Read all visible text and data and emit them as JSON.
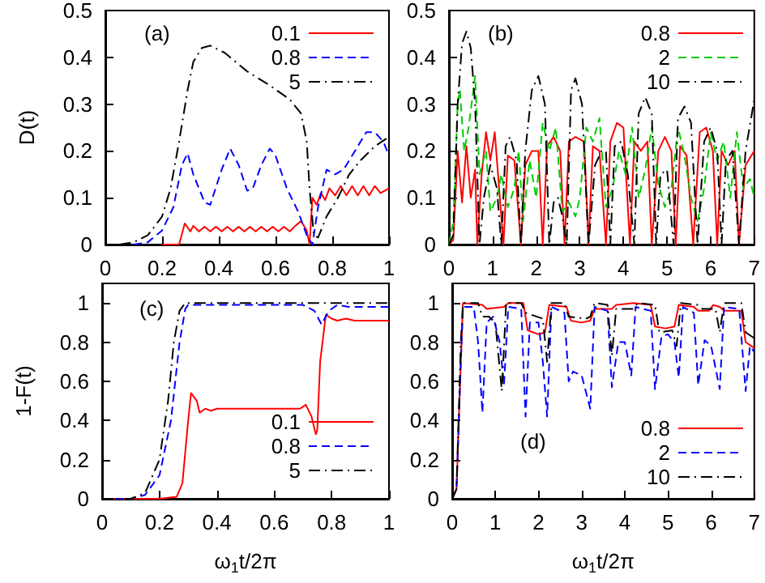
{
  "chart_data": [
    {
      "type": "line",
      "ylabel": "D(t)",
      "annotations": [
        "(a)"
      ],
      "xlim": [
        0,
        1
      ],
      "xticks": [
        0,
        0.2,
        0.4,
        0.6,
        0.8,
        1
      ],
      "ylim": [
        0,
        0.5
      ],
      "yticks": [
        0,
        0.1,
        0.2,
        0.3,
        0.4,
        0.5
      ],
      "legend": "top right",
      "grid": false,
      "series": [
        {
          "name": "0.1",
          "color": "#ff0000",
          "line_style": "solid",
          "x": [
            0.2,
            0.26,
            0.28,
            0.3,
            0.31,
            0.33,
            0.35,
            0.37,
            0.39,
            0.41,
            0.43,
            0.45,
            0.47,
            0.49,
            0.51,
            0.53,
            0.55,
            0.57,
            0.59,
            0.61,
            0.63,
            0.65,
            0.67,
            0.69,
            0.71,
            0.72,
            0.73,
            0.745,
            0.76,
            0.775,
            0.79,
            0.81,
            0.83,
            0.85,
            0.87,
            0.89,
            0.91,
            0.93,
            0.95,
            0.97,
            1.0
          ],
          "values": [
            0,
            0,
            0.045,
            0.028,
            0.04,
            0.028,
            0.038,
            0.028,
            0.038,
            0.028,
            0.038,
            0.028,
            0.038,
            0.028,
            0.038,
            0.028,
            0.038,
            0.028,
            0.038,
            0.028,
            0.038,
            0.028,
            0.04,
            0.05,
            0.03,
            0,
            0.1,
            0.085,
            0.11,
            0.095,
            0.12,
            0.105,
            0.125,
            0.105,
            0.125,
            0.105,
            0.125,
            0.105,
            0.125,
            0.11,
            0.12
          ]
        },
        {
          "name": "0.8",
          "color": "#0000ff",
          "line_style": "dashed",
          "x": [
            0.1,
            0.15,
            0.2,
            0.24,
            0.27,
            0.29,
            0.31,
            0.35,
            0.37,
            0.41,
            0.44,
            0.47,
            0.5,
            0.52,
            0.55,
            0.58,
            0.6,
            0.64,
            0.68,
            0.71,
            0.73,
            0.75,
            0.78,
            0.81,
            0.84,
            0.88,
            0.92,
            0.95,
            0.98,
            1.0
          ],
          "values": [
            0,
            0.005,
            0.03,
            0.08,
            0.17,
            0.195,
            0.15,
            0.09,
            0.085,
            0.16,
            0.205,
            0.17,
            0.115,
            0.12,
            0.17,
            0.205,
            0.19,
            0.12,
            0.07,
            0.02,
            0,
            0.08,
            0.16,
            0.15,
            0.16,
            0.2,
            0.24,
            0.24,
            0.22,
            0.19
          ]
        },
        {
          "name": "5",
          "color": "#000000",
          "line_style": "dashdot",
          "x": [
            0.05,
            0.1,
            0.15,
            0.2,
            0.23,
            0.26,
            0.29,
            0.31,
            0.34,
            0.37,
            0.42,
            0.5,
            0.58,
            0.65,
            0.69,
            0.71,
            0.72,
            0.735,
            0.75,
            0.78,
            0.82,
            0.86,
            0.9,
            0.95,
            1.0
          ],
          "values": [
            0,
            0.005,
            0.02,
            0.06,
            0.12,
            0.22,
            0.33,
            0.39,
            0.42,
            0.425,
            0.41,
            0.37,
            0.34,
            0.31,
            0.28,
            0.22,
            0.12,
            0.02,
            0.015,
            0.06,
            0.1,
            0.15,
            0.18,
            0.21,
            0.23
          ]
        }
      ]
    },
    {
      "type": "line",
      "annotations": [
        "(b)"
      ],
      "xlim": [
        0,
        7
      ],
      "xticks": [
        0,
        1,
        2,
        3,
        4,
        5,
        6,
        7
      ],
      "ylim": [
        0,
        0.5
      ],
      "yticks": [
        0,
        0.1,
        0.2,
        0.3,
        0.4,
        0.5
      ],
      "legend": "top right",
      "grid": false,
      "series": [
        {
          "name": "0.8",
          "color": "#ff0000",
          "line_style": "solid",
          "x": [
            0,
            0.1,
            0.2,
            0.3,
            0.4,
            0.5,
            0.6,
            0.65,
            0.75,
            0.85,
            0.95,
            1.05,
            1.15,
            1.25,
            1.35,
            1.5,
            1.65,
            1.75,
            1.9,
            2.05,
            2.15,
            2.25,
            2.4,
            2.55,
            2.65,
            2.75,
            2.9,
            3.1,
            3.2,
            3.3,
            3.45,
            3.6,
            3.7,
            3.85,
            4.0,
            4.15,
            4.25,
            4.4,
            4.55,
            4.65,
            4.8,
            4.95,
            5.1,
            5.2,
            5.3,
            5.45,
            5.6,
            5.75,
            5.9,
            6.05,
            6.15,
            6.25,
            6.4,
            6.55,
            6.65,
            6.8,
            7.0
          ],
          "values": [
            0,
            0.01,
            0.2,
            0.09,
            0.21,
            0.1,
            0.16,
            0,
            0.15,
            0.24,
            0.18,
            0.24,
            0.12,
            0,
            0.19,
            0.18,
            0,
            0.17,
            0.2,
            0.2,
            0,
            0.21,
            0.23,
            0.2,
            0,
            0.22,
            0.23,
            0.22,
            0,
            0.21,
            0.2,
            0,
            0.22,
            0.26,
            0.25,
            0,
            0.22,
            0.2,
            0.22,
            0,
            0.2,
            0.23,
            0.2,
            0,
            0.21,
            0.19,
            0,
            0.24,
            0.25,
            0.2,
            0,
            0.2,
            0.17,
            0.2,
            0,
            0.17,
            0.2
          ]
        },
        {
          "name": "2",
          "color": "#00cc00",
          "line_style": "dashed",
          "x": [
            0,
            0.1,
            0.2,
            0.25,
            0.35,
            0.45,
            0.6,
            0.7,
            0.85,
            0.95,
            1.1,
            1.2,
            1.35,
            1.5,
            1.6,
            1.7,
            1.85,
            2.0,
            2.15,
            2.3,
            2.45,
            2.6,
            2.75,
            2.9,
            3.0,
            3.15,
            3.3,
            3.45,
            3.6,
            3.75,
            3.9,
            4.05,
            4.2,
            4.35,
            4.5,
            4.65,
            4.8,
            4.95,
            5.1,
            5.25,
            5.4,
            5.55,
            5.7,
            5.85,
            6.0,
            6.15,
            6.3,
            6.45,
            6.6,
            6.75,
            6.9,
            7.0
          ],
          "values": [
            0,
            0.05,
            0.3,
            0.33,
            0.2,
            0.25,
            0.36,
            0.15,
            0.2,
            0.07,
            0.1,
            0.15,
            0.08,
            0.12,
            0.2,
            0.05,
            0.18,
            0.1,
            0.26,
            0.2,
            0.25,
            0.07,
            0.09,
            0.06,
            0.1,
            0.25,
            0.22,
            0.27,
            0.08,
            0.12,
            0.2,
            0.15,
            0.25,
            0.1,
            0.16,
            0.25,
            0.13,
            0.08,
            0.12,
            0.25,
            0.19,
            0.1,
            0.05,
            0.12,
            0.24,
            0.18,
            0.22,
            0.1,
            0.24,
            0.12,
            0.14,
            0.1
          ]
        },
        {
          "name": "10",
          "color": "#000000",
          "line_style": "dashdot",
          "x": [
            0,
            0.1,
            0.2,
            0.3,
            0.4,
            0.5,
            0.6,
            0.7,
            0.8,
            0.95,
            1.1,
            1.2,
            1.3,
            1.4,
            1.55,
            1.65,
            1.75,
            1.9,
            2.05,
            2.2,
            2.3,
            2.4,
            2.5,
            2.6,
            2.7,
            2.8,
            2.9,
            3.05,
            3.2,
            3.35,
            3.5,
            3.6,
            3.7,
            3.8,
            3.95,
            4.1,
            4.25,
            4.35,
            4.5,
            4.65,
            4.75,
            4.85,
            5.0,
            5.15,
            5.25,
            5.4,
            5.55,
            5.7,
            5.85,
            6.0,
            6.15,
            6.25,
            6.35,
            6.5,
            6.65,
            6.8,
            7.0
          ],
          "values": [
            0,
            0.02,
            0.3,
            0.43,
            0.455,
            0.42,
            0.3,
            0,
            0.1,
            0.17,
            0.12,
            0,
            0.21,
            0.23,
            0.18,
            0,
            0.2,
            0.33,
            0.36,
            0.3,
            0,
            0.09,
            0.1,
            0.06,
            0,
            0.33,
            0.355,
            0.3,
            0,
            0.17,
            0.2,
            0.2,
            0,
            0.21,
            0.22,
            0.15,
            0,
            0.28,
            0.315,
            0.28,
            0,
            0.15,
            0.16,
            0,
            0.27,
            0.295,
            0.26,
            0,
            0.22,
            0.25,
            0.2,
            0,
            0.18,
            0.2,
            0,
            0.2,
            0.31
          ]
        }
      ]
    },
    {
      "type": "line",
      "ylabel": "1-F(t)",
      "xlabel": "ω$_{1}$t/2π",
      "annotations": [
        "(c)"
      ],
      "xlim": [
        0,
        1
      ],
      "xticks": [
        0,
        0.2,
        0.4,
        0.6,
        0.8,
        1
      ],
      "ylim": [
        0,
        1.1
      ],
      "yticks": [
        0,
        0.2,
        0.4,
        0.6,
        0.8,
        1
      ],
      "legend": "bottom right",
      "grid": false,
      "series": [
        {
          "name": "0.1",
          "color": "#ff0000",
          "line_style": "solid",
          "x": [
            0,
            0.2,
            0.26,
            0.28,
            0.3,
            0.31,
            0.33,
            0.34,
            0.36,
            0.38,
            0.4,
            0.6,
            0.69,
            0.71,
            0.73,
            0.745,
            0.75,
            0.76,
            0.78,
            0.8,
            0.82,
            0.85,
            0.88,
            1.0
          ],
          "values": [
            0,
            0,
            0.01,
            0.08,
            0.4,
            0.54,
            0.5,
            0.44,
            0.46,
            0.45,
            0.46,
            0.46,
            0.46,
            0.48,
            0.42,
            0.33,
            0.35,
            0.7,
            0.94,
            0.92,
            0.91,
            0.92,
            0.91,
            0.91
          ]
        },
        {
          "name": "0.8",
          "color": "#0000ff",
          "line_style": "dashed",
          "x": [
            0,
            0.1,
            0.15,
            0.2,
            0.24,
            0.27,
            0.29,
            0.3,
            0.5,
            0.7,
            0.74,
            0.765,
            0.79,
            0.82,
            0.86,
            0.9,
            1.0
          ],
          "values": [
            0,
            0,
            0.02,
            0.12,
            0.4,
            0.8,
            0.97,
            0.99,
            0.99,
            0.99,
            0.96,
            0.89,
            0.96,
            0.99,
            0.98,
            0.98,
            0.98
          ]
        },
        {
          "name": "5",
          "color": "#000000",
          "line_style": "dashdot",
          "x": [
            0,
            0.1,
            0.15,
            0.2,
            0.23,
            0.25,
            0.27,
            0.29,
            1.0
          ],
          "values": [
            0,
            0,
            0.03,
            0.2,
            0.5,
            0.8,
            0.96,
            1.0,
            1.0
          ]
        }
      ]
    },
    {
      "type": "line",
      "xlabel": "ω$_{1}$t/2π",
      "annotations": [
        "(d)"
      ],
      "xlim": [
        0,
        7
      ],
      "xticks": [
        0,
        1,
        2,
        3,
        4,
        5,
        6,
        7
      ],
      "ylim": [
        0,
        1.1
      ],
      "yticks": [
        0,
        0.2,
        0.4,
        0.6,
        0.8,
        1
      ],
      "legend": "bottom right",
      "grid": false,
      "series": [
        {
          "name": "0.8",
          "color": "#ff0000",
          "line_style": "solid",
          "x": [
            0,
            0.1,
            0.2,
            0.25,
            0.7,
            0.8,
            1.2,
            1.3,
            1.65,
            1.75,
            2.0,
            2.15,
            2.25,
            2.65,
            2.75,
            3.0,
            3.2,
            3.3,
            3.7,
            3.8,
            4.2,
            4.6,
            4.7,
            4.95,
            5.15,
            5.25,
            5.6,
            5.7,
            5.95,
            6.05,
            6.2,
            6.3,
            6.7,
            6.8,
            7.0
          ],
          "values": [
            0,
            0.05,
            0.7,
            1.0,
            0.99,
            0.97,
            0.98,
            1.0,
            1.0,
            0.86,
            0.84,
            0.85,
            0.99,
            0.98,
            0.91,
            0.9,
            0.91,
            0.97,
            0.97,
            0.99,
            1.0,
            0.99,
            0.88,
            0.87,
            0.88,
            0.99,
            0.98,
            0.96,
            0.96,
            0.99,
            0.98,
            0.96,
            0.96,
            0.8,
            0.77
          ]
        },
        {
          "name": "2",
          "color": "#0000ff",
          "line_style": "dashed",
          "x": [
            0,
            0.1,
            0.2,
            0.25,
            0.5,
            0.6,
            0.7,
            0.8,
            0.95,
            1.1,
            1.2,
            1.3,
            1.6,
            1.7,
            1.8,
            2.0,
            2.1,
            2.2,
            2.3,
            2.6,
            2.7,
            2.8,
            3.0,
            3.2,
            3.3,
            3.6,
            3.7,
            3.85,
            4.0,
            4.15,
            4.25,
            4.6,
            4.7,
            4.85,
            5.0,
            5.15,
            5.25,
            5.35,
            5.6,
            5.7,
            5.85,
            6.0,
            6.2,
            6.3,
            6.65,
            6.8,
            6.9,
            7.0
          ],
          "values": [
            0,
            0.05,
            0.7,
            0.98,
            0.98,
            0.8,
            0.44,
            0.9,
            0.93,
            0.8,
            0.58,
            0.98,
            0.97,
            0.42,
            0.9,
            0.9,
            0.7,
            0.42,
            0.98,
            0.95,
            0.6,
            0.65,
            0.63,
            0.46,
            0.98,
            0.96,
            0.57,
            0.8,
            0.8,
            0.63,
            0.98,
            0.96,
            0.56,
            0.83,
            0.84,
            0.8,
            0.62,
            0.98,
            0.95,
            0.58,
            0.81,
            0.78,
            0.56,
            0.98,
            0.97,
            0.55,
            0.78,
            0.75
          ]
        },
        {
          "name": "10",
          "color": "#000000",
          "line_style": "dashdot",
          "x": [
            0,
            0.1,
            0.2,
            0.25,
            0.6,
            0.7,
            0.85,
            1.0,
            1.15,
            1.25,
            1.6,
            1.7,
            2.1,
            2.2,
            2.3,
            2.6,
            2.7,
            3.1,
            3.2,
            3.3,
            3.6,
            3.7,
            3.8,
            4.2,
            4.3,
            4.7,
            4.8,
            5.1,
            5.2,
            5.3,
            5.7,
            5.8,
            6.1,
            6.2,
            6.3,
            6.7,
            6.8,
            7.0
          ],
          "values": [
            0,
            0.05,
            0.8,
            1.0,
            1.0,
            0.93,
            0.93,
            0.9,
            0.55,
            1.0,
            1.0,
            0.95,
            0.92,
            0.7,
            1.0,
            1.0,
            0.93,
            0.92,
            0.93,
            1.0,
            0.99,
            0.73,
            0.97,
            0.97,
            1.0,
            0.99,
            0.85,
            0.86,
            0.78,
            1.0,
            0.99,
            0.97,
            0.97,
            0.85,
            1.0,
            1.0,
            0.85,
            0.82
          ]
        }
      ]
    }
  ]
}
